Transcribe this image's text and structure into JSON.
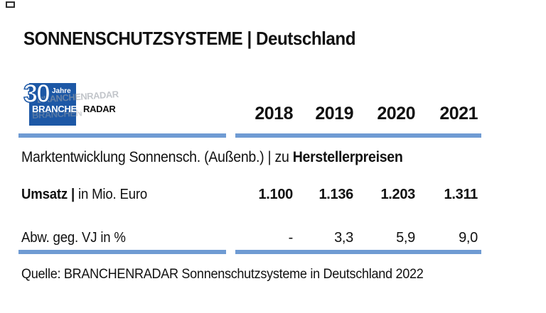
{
  "page": {
    "title": "SONNENSCHUTZSYSTEME | Deutschland"
  },
  "colors": {
    "logo_blue": "#1d58a6",
    "line_blue": "#6f9bd3",
    "ghost_gray": "#9aa0a8",
    "text": "#111111"
  },
  "logo": {
    "thirty": "30",
    "jahre": "Jahre",
    "branchen": "BRANCHEN",
    "radar": "RADAR",
    "ghost": "BRANCHENRADAR",
    "ghost2": "BRANCHEN"
  },
  "table": {
    "years": [
      "2018",
      "2019",
      "2020",
      "2021"
    ],
    "subtitle": {
      "regular": "Marktentwicklung Sonnensch. (Außenb.) | zu ",
      "bold": "Herstellerpreisen"
    },
    "rows": [
      {
        "label_bold": "Umsatz |",
        "label_regular": " in Mio. Euro",
        "values": [
          "1.100",
          "1.136",
          "1.203",
          "1.311"
        ]
      },
      {
        "label_bold": "",
        "label_regular": "Abw. geg. VJ in %",
        "values": [
          "-",
          "3,3",
          "5,9",
          "9,0"
        ]
      }
    ]
  },
  "footer": {
    "source": "Quelle: BRANCHENRADAR Sonnenschutzsysteme in Deutschland 2022"
  },
  "chart_data": {
    "type": "table",
    "title": "SONNENSCHUTZSYSTEME | Deutschland",
    "subtitle": "Marktentwicklung Sonnensch. (Außenb.) | zu Herstellerpreisen",
    "categories": [
      "2018",
      "2019",
      "2020",
      "2021"
    ],
    "series": [
      {
        "name": "Umsatz | in Mio. Euro",
        "values": [
          1100,
          1136,
          1203,
          1311
        ]
      },
      {
        "name": "Abw. geg. VJ in %",
        "values": [
          null,
          3.3,
          5.9,
          9.0
        ]
      }
    ],
    "source": "Quelle: BRANCHENRADAR Sonnenschutzsysteme in Deutschland 2022"
  }
}
